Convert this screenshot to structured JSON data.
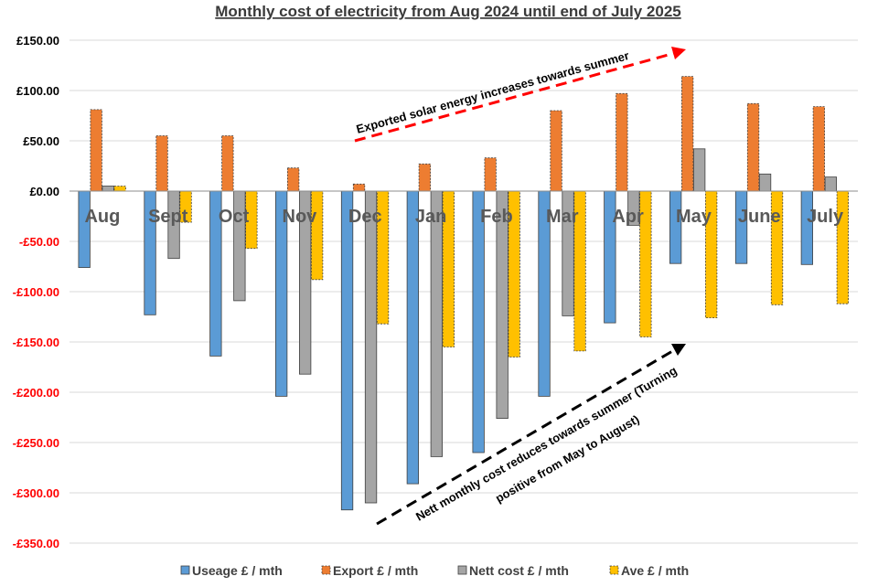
{
  "chart_data": {
    "type": "bar",
    "title": "Monthly cost of electricity from Aug 2024 until end of July 2025",
    "categories": [
      "Aug",
      "Sept",
      "Oct",
      "Nov",
      "Dec",
      "Jan",
      "Feb",
      "Mar",
      "Apr",
      "May",
      "June",
      "July"
    ],
    "series": [
      {
        "name": "Useage £ / mth",
        "color": "#5b9bd5",
        "dashed": false,
        "values": [
          -76,
          -123,
          -164,
          -204,
          -317,
          -291,
          -260,
          -204,
          -131,
          -72,
          -72,
          -73
        ]
      },
      {
        "name": "Export £ / mth",
        "color": "#ed7d31",
        "dashed": true,
        "values": [
          81,
          55,
          55,
          23,
          7,
          27,
          33,
          80,
          97,
          114,
          87,
          84
        ]
      },
      {
        "name": "Nett cost £ / mth",
        "color": "#a5a5a5",
        "dashed": false,
        "values": [
          5,
          -67,
          -109,
          -182,
          -310,
          -264,
          -226,
          -124,
          -34,
          42,
          17,
          14
        ]
      },
      {
        "name": "Ave £ / mth",
        "color": "#ffc000",
        "dashed": true,
        "values": [
          5,
          -31,
          -57,
          -88,
          -132,
          -155,
          -165,
          -159,
          -145,
          -126,
          -113,
          -112
        ]
      }
    ],
    "ylim": [
      -350,
      150
    ],
    "ytick_values": [
      150,
      100,
      50,
      0,
      -50,
      -100,
      -150,
      -200,
      -250,
      -300,
      -350
    ],
    "ytick_labels": [
      "£150.00",
      "£100.00",
      "£50.00",
      "£0.00",
      "-£50.00",
      "-£100.00",
      "-£150.00",
      "-£200.00",
      "-£250.00",
      "-£300.00",
      "-£350.00"
    ],
    "positive_tick_color": "#000000",
    "negative_tick_color": "#ff0000",
    "grid": true,
    "legend_position": "bottom",
    "annotations": [
      {
        "id": "export-trend",
        "text": "Exported solar energy increases towards summer",
        "arrow_color": "#ff0000"
      },
      {
        "id": "nett-trend",
        "line1": "Nett monthly cost reduces towards summer (Turning",
        "line2": "positive from May to August)",
        "arrow_color": "#000000"
      }
    ]
  }
}
